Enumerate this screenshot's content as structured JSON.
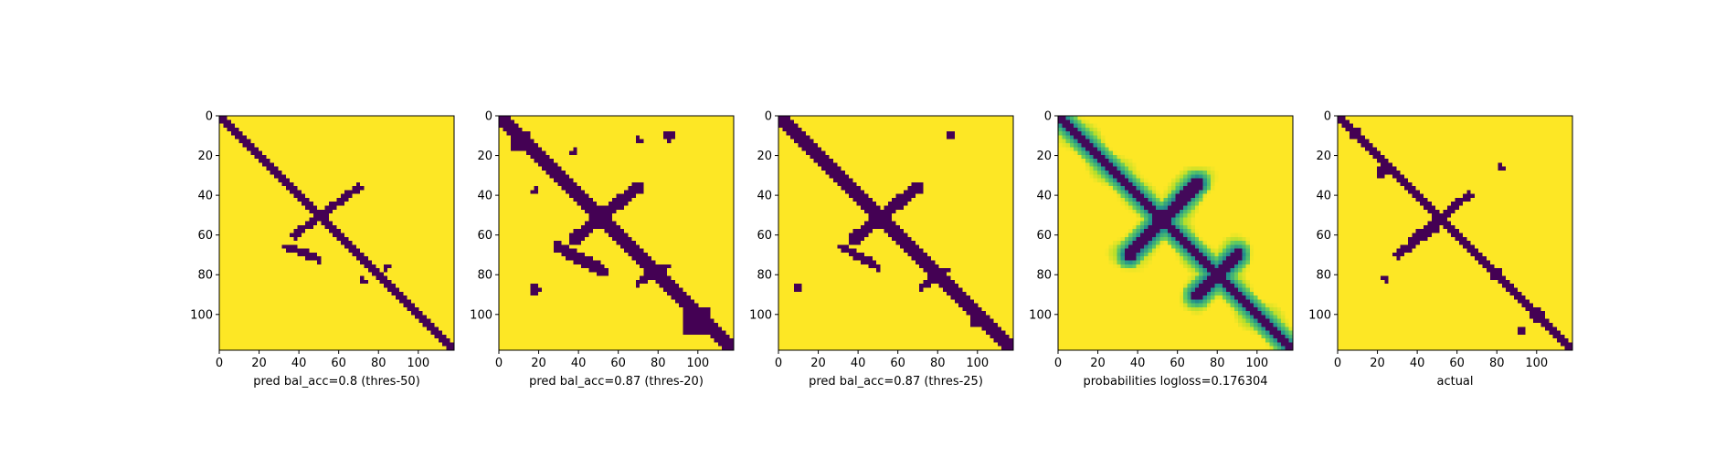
{
  "colors": {
    "zero": "#440154",
    "one": "#fde725",
    "viridis_mid": [
      "#440154",
      "#3b528b",
      "#21918c",
      "#5ec962",
      "#b5de2b",
      "#fde725"
    ]
  },
  "chart_data": [
    {
      "type": "heatmap",
      "xlabel": "pred bal_acc=0.8 (thres-50)",
      "ylabel": "",
      "size": 118,
      "xlim": [
        0,
        118
      ],
      "ylim": [
        118,
        0
      ],
      "xticks": [
        "0",
        "20",
        "40",
        "60",
        "80",
        "100"
      ],
      "yticks": [
        "0",
        "20",
        "40",
        "60",
        "80",
        "100"
      ],
      "values_kind": "binary",
      "diagonal_width": 2,
      "features": [
        {
          "kind": "arm",
          "from": [
            38,
            60
          ],
          "to": [
            70,
            36
          ],
          "width": 2
        },
        {
          "kind": "arm",
          "from": [
            34,
            66
          ],
          "to": [
            50,
            72
          ],
          "width": 2
        },
        {
          "kind": "blob",
          "center": [
            84,
            76
          ],
          "radius": 2
        },
        {
          "kind": "blob",
          "center": [
            72,
            83
          ],
          "radius": 2
        }
      ]
    },
    {
      "type": "heatmap",
      "xlabel": "pred bal_acc=0.87 (thres-20)",
      "ylabel": "",
      "size": 118,
      "xlim": [
        0,
        118
      ],
      "ylim": [
        118,
        0
      ],
      "xticks": [
        "0",
        "20",
        "40",
        "60",
        "80",
        "100"
      ],
      "yticks": [
        "0",
        "20",
        "40",
        "60",
        "80",
        "100"
      ],
      "values_kind": "binary",
      "diagonal_width": 4,
      "features": [
        {
          "kind": "arm",
          "from": [
            38,
            62
          ],
          "to": [
            70,
            36
          ],
          "width": 3
        },
        {
          "kind": "arm",
          "from": [
            30,
            66
          ],
          "to": [
            52,
            78
          ],
          "width": 3
        },
        {
          "kind": "block",
          "center": [
            52,
            52
          ],
          "radius": 6
        },
        {
          "kind": "block",
          "center": [
            100,
            104
          ],
          "radius": 7
        },
        {
          "kind": "block",
          "center": [
            10,
            12
          ],
          "radius": 5
        },
        {
          "kind": "arm",
          "from": [
            70,
            84
          ],
          "to": [
            84,
            76
          ],
          "width": 2
        },
        {
          "kind": "blob",
          "center": [
            18,
            88
          ],
          "radius": 3
        },
        {
          "kind": "blob",
          "center": [
            86,
            10
          ],
          "radius": 3
        },
        {
          "kind": "blob",
          "center": [
            38,
            18
          ],
          "radius": 2
        },
        {
          "kind": "blob",
          "center": [
            18,
            38
          ],
          "radius": 2
        },
        {
          "kind": "blob",
          "center": [
            70,
            12
          ],
          "radius": 2
        }
      ]
    },
    {
      "type": "heatmap",
      "xlabel": "pred bal_acc=0.87 (thres-25)",
      "ylabel": "",
      "size": 118,
      "xlim": [
        0,
        118
      ],
      "ylim": [
        118,
        0
      ],
      "xticks": [
        "0",
        "20",
        "40",
        "60",
        "80",
        "100"
      ],
      "yticks": [
        "0",
        "20",
        "40",
        "60",
        "80",
        "100"
      ],
      "values_kind": "binary",
      "diagonal_width": 3,
      "features": [
        {
          "kind": "arm",
          "from": [
            38,
            62
          ],
          "to": [
            70,
            36
          ],
          "width": 3
        },
        {
          "kind": "arm",
          "from": [
            32,
            66
          ],
          "to": [
            50,
            76
          ],
          "width": 2
        },
        {
          "kind": "block",
          "center": [
            52,
            52
          ],
          "radius": 5
        },
        {
          "kind": "block",
          "center": [
            100,
            102
          ],
          "radius": 4
        },
        {
          "kind": "arm",
          "from": [
            72,
            86
          ],
          "to": [
            84,
            78
          ],
          "width": 2
        },
        {
          "kind": "blob",
          "center": [
            10,
            86
          ],
          "radius": 2
        },
        {
          "kind": "blob",
          "center": [
            86,
            10
          ],
          "radius": 2
        }
      ]
    },
    {
      "type": "heatmap",
      "xlabel": "probabilities logloss=0.176304",
      "ylabel": "",
      "size": 118,
      "xlim": [
        0,
        118
      ],
      "ylim": [
        118,
        0
      ],
      "xticks": [
        "0",
        "20",
        "40",
        "60",
        "80",
        "100"
      ],
      "yticks": [
        "0",
        "20",
        "40",
        "60",
        "80",
        "100"
      ],
      "values_kind": "continuous",
      "diagonal_width": 2,
      "features": [
        {
          "kind": "arm",
          "from": [
            36,
            70
          ],
          "to": [
            70,
            34
          ],
          "width": 3
        },
        {
          "kind": "arm",
          "from": [
            70,
            90
          ],
          "to": [
            90,
            70
          ],
          "width": 3
        },
        {
          "kind": "blob",
          "center": [
            52,
            52
          ],
          "radius": 5
        }
      ]
    },
    {
      "type": "heatmap",
      "xlabel": "actual",
      "ylabel": "",
      "size": 118,
      "xlim": [
        0,
        118
      ],
      "ylim": [
        118,
        0
      ],
      "xticks": [
        "0",
        "20",
        "40",
        "60",
        "80",
        "100"
      ],
      "yticks": [
        "0",
        "20",
        "40",
        "60",
        "80",
        "100"
      ],
      "values_kind": "binary",
      "diagonal_width": 2,
      "features": [
        {
          "kind": "arm",
          "from": [
            38,
            62
          ],
          "to": [
            66,
            40
          ],
          "width": 2
        },
        {
          "kind": "arm",
          "from": [
            30,
            70
          ],
          "to": [
            50,
            56
          ],
          "width": 2
        },
        {
          "kind": "block",
          "center": [
            52,
            52
          ],
          "radius": 3
        },
        {
          "kind": "block",
          "center": [
            8,
            8
          ],
          "radius": 3
        },
        {
          "kind": "blob",
          "center": [
            22,
            28
          ],
          "radius": 3
        },
        {
          "kind": "blob",
          "center": [
            80,
            80
          ],
          "radius": 3
        },
        {
          "kind": "blob",
          "center": [
            100,
            100
          ],
          "radius": 4
        },
        {
          "kind": "blob",
          "center": [
            24,
            82
          ],
          "radius": 2
        },
        {
          "kind": "blob",
          "center": [
            82,
            26
          ],
          "radius": 2
        },
        {
          "kind": "blob",
          "center": [
            92,
            108
          ],
          "radius": 2
        }
      ]
    }
  ]
}
